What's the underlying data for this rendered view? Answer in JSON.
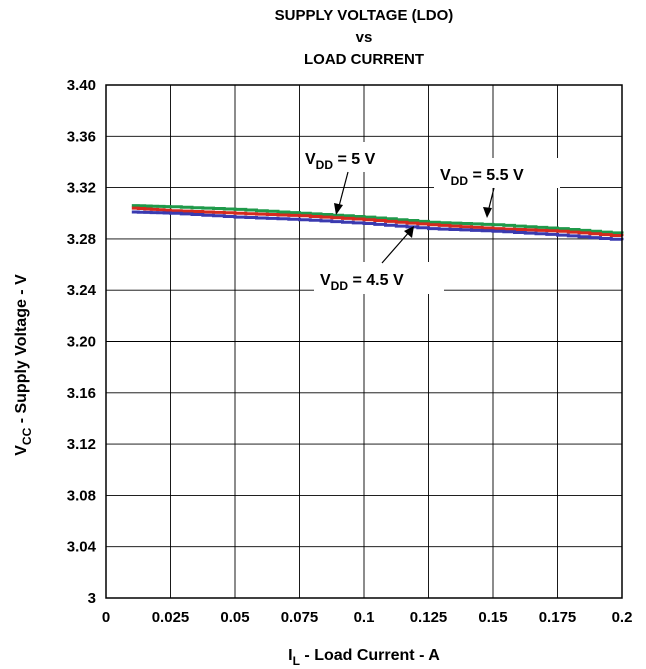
{
  "chart_data": {
    "type": "line",
    "title_lines": [
      "SUPPLY VOLTAGE (LDO)",
      "vs",
      "LOAD CURRENT"
    ],
    "xlabel": {
      "main": "I",
      "sub": "L",
      "rest": " - Load Current - A"
    },
    "ylabel": {
      "main": "V",
      "sub": "CC",
      "rest": " - Supply Voltage - V"
    },
    "xlim": [
      0,
      0.2
    ],
    "ylim": [
      3,
      3.4
    ],
    "xticks": [
      "0",
      "0.025",
      "0.05",
      "0.075",
      "0.1",
      "0.125",
      "0.15",
      "0.175",
      "0.2"
    ],
    "yticks": [
      "3",
      "3.04",
      "3.08",
      "3.12",
      "3.16",
      "3.20",
      "3.24",
      "3.28",
      "3.32",
      "3.36",
      "3.40"
    ],
    "grid": true,
    "series": [
      {
        "name": "VDD = 5.5 V",
        "color": "#1f9a4a",
        "x": [
          0.01,
          0.025,
          0.05,
          0.075,
          0.1,
          0.125,
          0.15,
          0.175,
          0.2
        ],
        "y": [
          3.306,
          3.305,
          3.303,
          3.3,
          3.297,
          3.293,
          3.291,
          3.288,
          3.284
        ]
      },
      {
        "name": "VDD = 5 V",
        "color": "#d62a1e",
        "x": [
          0.01,
          0.025,
          0.05,
          0.075,
          0.1,
          0.125,
          0.15,
          0.175,
          0.2
        ],
        "y": [
          3.304,
          3.302,
          3.3,
          3.298,
          3.295,
          3.291,
          3.288,
          3.286,
          3.282
        ]
      },
      {
        "name": "VDD = 4.5 V",
        "color": "#3a3ab0",
        "x": [
          0.01,
          0.025,
          0.05,
          0.075,
          0.1,
          0.125,
          0.15,
          0.175,
          0.2
        ],
        "y": [
          3.301,
          3.3,
          3.297,
          3.295,
          3.292,
          3.288,
          3.286,
          3.283,
          3.279
        ]
      }
    ],
    "annotations": [
      {
        "main": "V",
        "sub": "DD",
        "rest": " = 5 V",
        "series": "VDD = 5 V"
      },
      {
        "main": "V",
        "sub": "DD",
        "rest": " = 5.5 V",
        "series": "VDD = 5.5 V"
      },
      {
        "main": "V",
        "sub": "DD",
        "rest": " = 4.5 V",
        "series": "VDD = 4.5 V"
      }
    ]
  }
}
